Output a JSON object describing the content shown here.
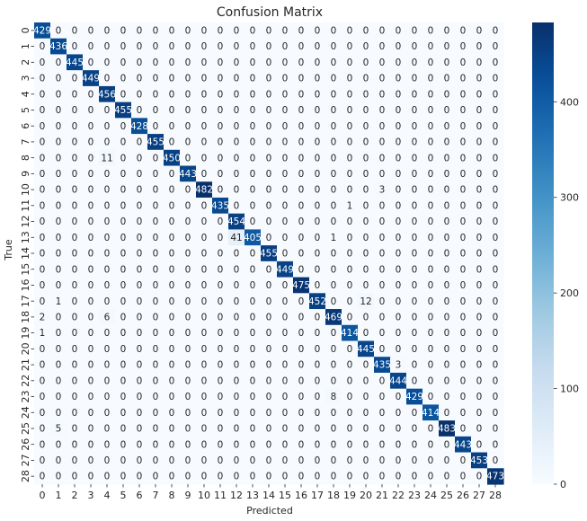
{
  "chart_data": {
    "type": "heatmap",
    "title": "Confusion Matrix",
    "xlabel": "Predicted",
    "ylabel": "True",
    "x_labels": [
      "0",
      "1",
      "2",
      "3",
      "4",
      "5",
      "6",
      "7",
      "8",
      "9",
      "10",
      "11",
      "12",
      "13",
      "14",
      "15",
      "16",
      "17",
      "18",
      "19",
      "20",
      "21",
      "22",
      "23",
      "24",
      "25",
      "26",
      "27",
      "28"
    ],
    "y_labels": [
      "0",
      "1",
      "2",
      "3",
      "4",
      "5",
      "6",
      "7",
      "8",
      "9",
      "10",
      "11",
      "12",
      "13",
      "14",
      "15",
      "16",
      "17",
      "18",
      "19",
      "20",
      "21",
      "22",
      "23",
      "24",
      "25",
      "26",
      "27",
      "28"
    ],
    "diagonal": [
      429,
      436,
      445,
      449,
      456,
      455,
      428,
      455,
      450,
      443,
      482,
      435,
      454,
      405,
      455,
      449,
      475,
      452,
      469,
      414,
      445,
      435,
      444,
      429,
      414,
      483,
      443,
      453,
      473
    ],
    "off_diagonal": [
      {
        "row": 8,
        "col": 4,
        "value": 11
      },
      {
        "row": 10,
        "col": 21,
        "value": 3
      },
      {
        "row": 11,
        "col": 19,
        "value": 1
      },
      {
        "row": 13,
        "col": 12,
        "value": 41
      },
      {
        "row": 13,
        "col": 18,
        "value": 1
      },
      {
        "row": 17,
        "col": 1,
        "value": 1
      },
      {
        "row": 17,
        "col": 20,
        "value": 12
      },
      {
        "row": 18,
        "col": 0,
        "value": 2
      },
      {
        "row": 18,
        "col": 4,
        "value": 6
      },
      {
        "row": 19,
        "col": 0,
        "value": 1
      },
      {
        "row": 21,
        "col": 22,
        "value": 3
      },
      {
        "row": 23,
        "col": 18,
        "value": 8
      },
      {
        "row": 25,
        "col": 1,
        "value": 5
      }
    ],
    "colorbar": {
      "colormap": "Blues",
      "min": 0,
      "max": 483,
      "ticks": [
        0,
        100,
        200,
        300,
        400
      ]
    },
    "annotations": "cell values printed in each cell",
    "grid": false
  }
}
